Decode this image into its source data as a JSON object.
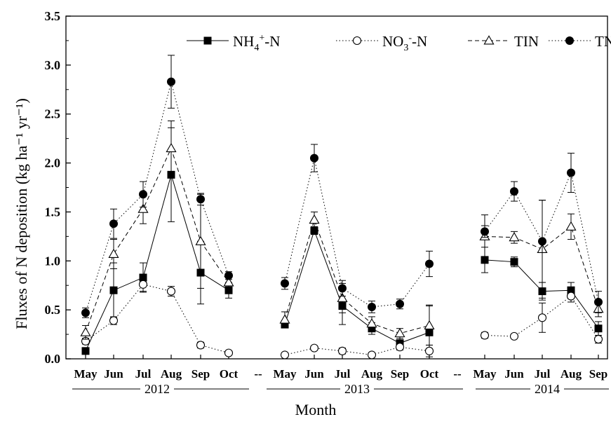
{
  "chart_data": {
    "type": "line",
    "ylabel": "Fluxes of N deposition (kg ha⁻¹ yr⁻¹)",
    "xlabel": "Month",
    "ylim": [
      0.0,
      3.5
    ],
    "y_ticks": [
      "0.0",
      "0.5",
      "1.0",
      "1.5",
      "2.0",
      "2.5",
      "3.0",
      "3.5"
    ],
    "gap_marker": "--",
    "groups": [
      {
        "year": "2012",
        "months": [
          "May",
          "Jun",
          "Jul",
          "Aug",
          "Sep",
          "Oct"
        ]
      },
      {
        "year": "2013",
        "months": [
          "May",
          "Jun",
          "Jul",
          "Aug",
          "Sep",
          "Oct"
        ]
      },
      {
        "year": "2014",
        "months": [
          "May",
          "Jun",
          "Jul",
          "Aug",
          "Sep"
        ]
      }
    ],
    "legend_position": "top",
    "series": [
      {
        "name": "NH4+-N",
        "legend_main": "NH",
        "legend_sub": "4",
        "legend_sup": "+",
        "legend_tail": "-N",
        "marker": "filled-square",
        "line": "solid",
        "values": [
          [
            0.08,
            0.7,
            0.83,
            1.88,
            0.88,
            0.7
          ],
          [
            0.35,
            1.31,
            0.54,
            0.31,
            0.16,
            0.27
          ],
          [
            1.01,
            0.99,
            0.69,
            0.7,
            0.31
          ]
        ],
        "errors": [
          [
            0.02,
            0.28,
            0.15,
            0.48,
            0.32,
            0.08
          ],
          [
            0.03,
            0.04,
            0.19,
            0.06,
            0.07,
            0.28
          ],
          [
            0.13,
            0.05,
            0.09,
            0.08,
            0.07
          ]
        ]
      },
      {
        "name": "NO3--N",
        "legend_main": "NO",
        "legend_sub": "3",
        "legend_sup": "-",
        "legend_tail": "-N",
        "marker": "open-circle",
        "line": "dotted",
        "values": [
          [
            0.18,
            0.39,
            0.76,
            0.69,
            0.14,
            0.06
          ],
          [
            0.04,
            0.11,
            0.08,
            0.04,
            0.12,
            0.08
          ],
          [
            0.24,
            0.23,
            0.42,
            0.64,
            0.2
          ]
        ],
        "errors": [
          [
            0.03,
            0.04,
            0.07,
            0.05,
            0.03,
            0.02
          ],
          [
            0.02,
            0.02,
            0.03,
            0.02,
            0.03,
            0.06
          ],
          [
            0.03,
            0.02,
            0.15,
            0.06,
            0.04
          ]
        ]
      },
      {
        "name": "TIN",
        "legend_main": "TIN",
        "legend_sub": "",
        "legend_sup": "",
        "legend_tail": "",
        "marker": "open-triangle",
        "line": "dashed",
        "values": [
          [
            0.27,
            1.07,
            1.53,
            2.15,
            1.2,
            0.78
          ],
          [
            0.4,
            1.42,
            0.62,
            0.36,
            0.26,
            0.34
          ],
          [
            1.25,
            1.24,
            1.12,
            1.35,
            0.51
          ]
        ],
        "errors": [
          [
            0.07,
            0.15,
            0.15,
            0.28,
            0.48,
            0.07
          ],
          [
            0.08,
            0.08,
            0.15,
            0.07,
            0.05,
            0.2
          ],
          [
            0.22,
            0.06,
            0.5,
            0.13,
            0.08
          ]
        ]
      },
      {
        "name": "TN",
        "legend_main": "TN",
        "legend_sub": "",
        "legend_sup": "",
        "legend_tail": "",
        "marker": "filled-circle",
        "line": "dotted",
        "values": [
          [
            0.47,
            1.38,
            1.68,
            2.83,
            1.63,
            0.85
          ],
          [
            0.77,
            2.05,
            0.72,
            0.53,
            0.56,
            0.97
          ],
          [
            1.3,
            1.71,
            1.2,
            1.9,
            0.58
          ]
        ],
        "errors": [
          [
            0.05,
            0.15,
            0.13,
            0.27,
            0.06,
            0.04
          ],
          [
            0.06,
            0.14,
            0.08,
            0.06,
            0.05,
            0.13
          ],
          [
            0.06,
            0.1,
            0.42,
            0.2,
            0.11
          ]
        ]
      }
    ]
  }
}
